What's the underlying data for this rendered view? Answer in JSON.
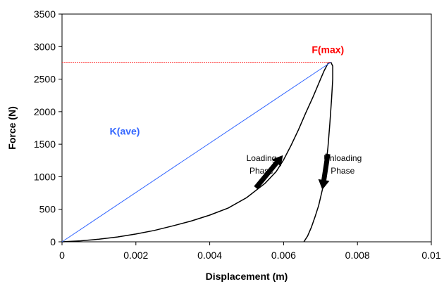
{
  "chart_data": {
    "type": "line",
    "title": "",
    "xlabel": "Displacement (m)",
    "ylabel": "Force (N)",
    "xlim": [
      0,
      0.01
    ],
    "ylim": [
      0,
      3500
    ],
    "x_ticks": [
      0,
      0.002,
      0.004,
      0.006,
      0.008,
      0.01
    ],
    "x_tick_labels": [
      "0",
      "0.002",
      "0.004",
      "0.006",
      "0.008",
      "0.01"
    ],
    "y_ticks": [
      0,
      500,
      1000,
      1500,
      2000,
      2500,
      3000,
      3500
    ],
    "y_tick_labels": [
      "0",
      "500",
      "1000",
      "1500",
      "2000",
      "2500",
      "3000",
      "3500"
    ],
    "grid": false,
    "legend": "none",
    "series": [
      {
        "color": "#000000",
        "x": [
          0.0,
          0.0005,
          0.001,
          0.0015,
          0.002,
          0.0025,
          0.003,
          0.0035,
          0.004,
          0.0045,
          0.005,
          0.0055,
          0.0058,
          0.006,
          0.0062,
          0.0064,
          0.0066,
          0.0068,
          0.007,
          0.0071,
          0.0072,
          0.00728
        ],
        "y": [
          0,
          15,
          40,
          75,
          120,
          175,
          245,
          320,
          410,
          520,
          680,
          900,
          1080,
          1260,
          1480,
          1720,
          1980,
          2230,
          2500,
          2630,
          2740,
          2760
        ]
      },
      {
        "color": "#000000",
        "x": [
          0.00728,
          0.00733,
          0.00733,
          0.0073,
          0.00725,
          0.0072,
          0.00712,
          0.00705,
          0.00695,
          0.00685,
          0.00675,
          0.00665,
          0.00655
        ],
        "y": [
          2760,
          2700,
          2500,
          2200,
          1800,
          1450,
          1050,
          800,
          560,
          380,
          220,
          90,
          0
        ]
      },
      {
        "color": "#3366ff",
        "x": [
          0,
          0.00728
        ],
        "y": [
          0,
          2760
        ]
      },
      {
        "color": "#ff3333",
        "dashed": true,
        "x": [
          0,
          0.00728
        ],
        "y": [
          2760,
          2760
        ]
      }
    ],
    "annotations": [
      {
        "text": "F(max)",
        "x": 0.0072,
        "y": 2900,
        "color": "#ff0000",
        "bold": true
      },
      {
        "text": "K(ave)",
        "x": 0.0017,
        "y": 1650,
        "color": "#3366ff",
        "bold": true
      },
      {
        "text": "Loading",
        "x": 0.0054,
        "y": 1240,
        "color": "#000000"
      },
      {
        "text": "Phase",
        "x": 0.0054,
        "y": 1050,
        "color": "#000000"
      },
      {
        "text": "Unloading",
        "x": 0.0076,
        "y": 1240,
        "color": "#000000"
      },
      {
        "text": "Phase",
        "x": 0.0076,
        "y": 1050,
        "color": "#000000"
      }
    ],
    "arrows": [
      {
        "from": [
          0.00525,
          830
        ],
        "to": [
          0.00598,
          1330
        ],
        "color": "#000000"
      },
      {
        "from": [
          0.0072,
          1350
        ],
        "to": [
          0.00705,
          800
        ],
        "color": "#000000"
      }
    ]
  }
}
